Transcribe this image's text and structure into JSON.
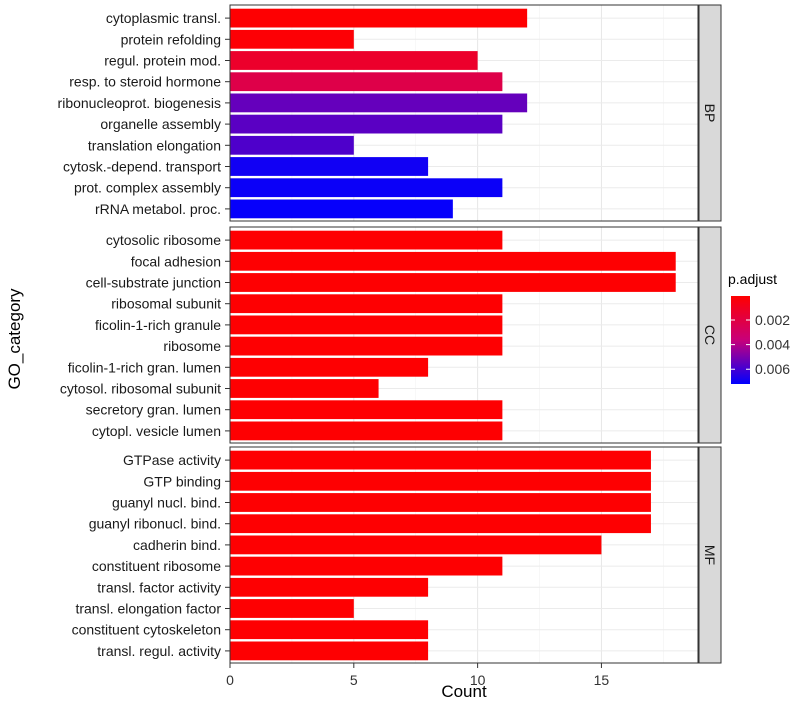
{
  "chart_data": {
    "type": "bar",
    "orientation": "horizontal",
    "xlabel": "Count",
    "ylabel": "GO_category",
    "xlim": [
      0,
      18.9
    ],
    "x_ticks": [
      0,
      5,
      10,
      15
    ],
    "legend": {
      "title": "p.adjust",
      "placement": "right",
      "range": [
        5e-05,
        0.0072
      ],
      "ticks": [
        0.002,
        0.004,
        0.006
      ],
      "tick_labels": [
        "0.002",
        "0.004",
        "0.006"
      ],
      "low_color": "#ff0000",
      "high_color": "#0000ff"
    },
    "facets": [
      {
        "name": "BP",
        "bars": [
          {
            "label": "cytoplasmic transl.",
            "count": 12,
            "p_adjust": 0.0001
          },
          {
            "label": "protein refolding",
            "count": 5,
            "p_adjust": 0.0002
          },
          {
            "label": "regul. protein mod.",
            "count": 10,
            "p_adjust": 0.0013
          },
          {
            "label": "resp. to steroid hormone",
            "count": 11,
            "p_adjust": 0.0022
          },
          {
            "label": "ribonucleoprot. biogenesis",
            "count": 12,
            "p_adjust": 0.0054
          },
          {
            "label": "organelle assembly",
            "count": 11,
            "p_adjust": 0.0056
          },
          {
            "label": "translation elongation",
            "count": 5,
            "p_adjust": 0.0058
          },
          {
            "label": "cytosk.-depend. transport",
            "count": 8,
            "p_adjust": 0.0069
          },
          {
            "label": "prot. complex assembly",
            "count": 11,
            "p_adjust": 0.007
          },
          {
            "label": "rRNA metabol. proc.",
            "count": 9,
            "p_adjust": 0.0071
          }
        ]
      },
      {
        "name": "CC",
        "bars": [
          {
            "label": "cytosolic ribosome",
            "count": 11,
            "p_adjust": 0.0001
          },
          {
            "label": "focal adhesion",
            "count": 18,
            "p_adjust": 0.0001
          },
          {
            "label": "cell-substrate junction",
            "count": 18,
            "p_adjust": 0.0001
          },
          {
            "label": "ribosomal subunit",
            "count": 11,
            "p_adjust": 0.0001
          },
          {
            "label": "ficolin-1-rich granule",
            "count": 11,
            "p_adjust": 0.0001
          },
          {
            "label": "ribosome",
            "count": 11,
            "p_adjust": 0.0001
          },
          {
            "label": "ficolin-1-rich gran. lumen",
            "count": 8,
            "p_adjust": 0.0001
          },
          {
            "label": "cytosol. ribosomal subunit",
            "count": 6,
            "p_adjust": 0.0001
          },
          {
            "label": "secretory gran. lumen",
            "count": 11,
            "p_adjust": 0.0001
          },
          {
            "label": "cytopl. vesicle lumen",
            "count": 11,
            "p_adjust": 0.0001
          }
        ]
      },
      {
        "name": "MF",
        "bars": [
          {
            "label": "GTPase activity",
            "count": 17,
            "p_adjust": 0.0001
          },
          {
            "label": "GTP binding",
            "count": 17,
            "p_adjust": 0.0001
          },
          {
            "label": "guanyl nucl. bind.",
            "count": 17,
            "p_adjust": 0.0001
          },
          {
            "label": "guanyl ribonucl. bind.",
            "count": 17,
            "p_adjust": 0.0001
          },
          {
            "label": "cadherin bind.",
            "count": 15,
            "p_adjust": 0.0001
          },
          {
            "label": "constituent ribosome",
            "count": 11,
            "p_adjust": 0.0001
          },
          {
            "label": "transl. factor activity",
            "count": 8,
            "p_adjust": 0.0001
          },
          {
            "label": "transl. elongation factor",
            "count": 5,
            "p_adjust": 0.0001
          },
          {
            "label": "constituent cytoskeleton",
            "count": 8,
            "p_adjust": 0.0001
          },
          {
            "label": "transl. regul. activity",
            "count": 8,
            "p_adjust": 0.0001
          }
        ]
      }
    ]
  }
}
